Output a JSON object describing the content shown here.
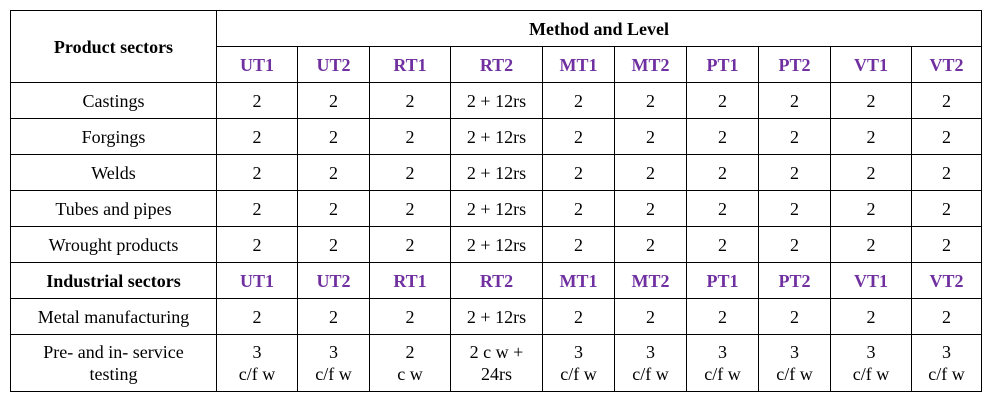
{
  "table": {
    "product_sectors_header": "Product sectors",
    "method_level_header": "Method and Level",
    "industrial_sectors_header": "Industrial sectors",
    "colors": {
      "method_label": "#7030a0",
      "border": "#000000"
    },
    "methods": [
      "UT1",
      "UT2",
      "RT1",
      "RT2",
      "MT1",
      "MT2",
      "PT1",
      "PT2",
      "VT1",
      "VT2"
    ],
    "product_rows": [
      {
        "label": "Castings",
        "values": [
          "2",
          "2",
          "2",
          "2 + 12rs",
          "2",
          "2",
          "2",
          "2",
          "2",
          "2"
        ]
      },
      {
        "label": "Forgings",
        "values": [
          "2",
          "2",
          "2",
          "2 + 12rs",
          "2",
          "2",
          "2",
          "2",
          "2",
          "2"
        ]
      },
      {
        "label": "Welds",
        "values": [
          "2",
          "2",
          "2",
          "2 + 12rs",
          "2",
          "2",
          "2",
          "2",
          "2",
          "2"
        ]
      },
      {
        "label": "Tubes and pipes",
        "values": [
          "2",
          "2",
          "2",
          "2 + 12rs",
          "2",
          "2",
          "2",
          "2",
          "2",
          "2"
        ]
      },
      {
        "label": "Wrought products",
        "values": [
          "2",
          "2",
          "2",
          "2 + 12rs",
          "2",
          "2",
          "2",
          "2",
          "2",
          "2"
        ]
      }
    ],
    "industrial_rows": [
      {
        "label_lines": [
          "Metal manufacturing"
        ],
        "values": [
          [
            "2"
          ],
          [
            "2"
          ],
          [
            "2"
          ],
          [
            "2 + 12rs"
          ],
          [
            "2"
          ],
          [
            "2"
          ],
          [
            "2"
          ],
          [
            "2"
          ],
          [
            "2"
          ],
          [
            "2"
          ]
        ]
      },
      {
        "label_lines": [
          "Pre- and in- service",
          "testing"
        ],
        "values": [
          [
            "3",
            "c/f w"
          ],
          [
            "3",
            "c/f w"
          ],
          [
            "2",
            "c w"
          ],
          [
            "2 c w +",
            "24rs"
          ],
          [
            "3",
            "c/f w"
          ],
          [
            "3",
            "c/f w"
          ],
          [
            "3",
            "c/f w"
          ],
          [
            "3",
            "c/f w"
          ],
          [
            "3",
            "c/f w"
          ],
          [
            "3",
            "c/f w"
          ]
        ]
      }
    ]
  }
}
